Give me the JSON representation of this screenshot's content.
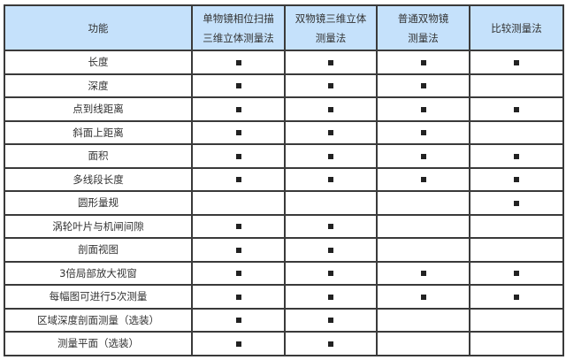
{
  "table": {
    "headers": [
      "功能",
      "单物镜相位扫描\n三维立体测量法",
      "双物镜三维立体\n测量法",
      "普通双物镜\n测量法",
      "比较测量法"
    ],
    "mark_symbol": "filled-square",
    "mark_color": "#222222",
    "header_bg": "#c5e1fb",
    "rows": [
      {
        "feature": "长度",
        "support": [
          true,
          true,
          true,
          true
        ]
      },
      {
        "feature": "深度",
        "support": [
          true,
          true,
          true,
          false
        ]
      },
      {
        "feature": "点到线距离",
        "support": [
          true,
          true,
          true,
          true
        ]
      },
      {
        "feature": "斜面上距离",
        "support": [
          true,
          true,
          true,
          false
        ]
      },
      {
        "feature": "面积",
        "support": [
          true,
          true,
          true,
          true
        ]
      },
      {
        "feature": "多线段长度",
        "support": [
          true,
          true,
          true,
          true
        ]
      },
      {
        "feature": "圆形量规",
        "support": [
          false,
          false,
          false,
          true
        ]
      },
      {
        "feature": "涡轮叶片与机闸间隙",
        "support": [
          true,
          true,
          false,
          false
        ]
      },
      {
        "feature": "剖面视图",
        "support": [
          true,
          true,
          false,
          false
        ]
      },
      {
        "feature": "3倍局部放大视窗",
        "support": [
          true,
          true,
          true,
          true
        ]
      },
      {
        "feature": "每幅图可进行5次测量",
        "support": [
          true,
          true,
          true,
          true
        ]
      },
      {
        "feature": "区域深度剖面测量（选装）",
        "support": [
          true,
          true,
          false,
          false
        ]
      },
      {
        "feature": "测量平面（选装）",
        "support": [
          true,
          true,
          false,
          false
        ]
      }
    ]
  }
}
